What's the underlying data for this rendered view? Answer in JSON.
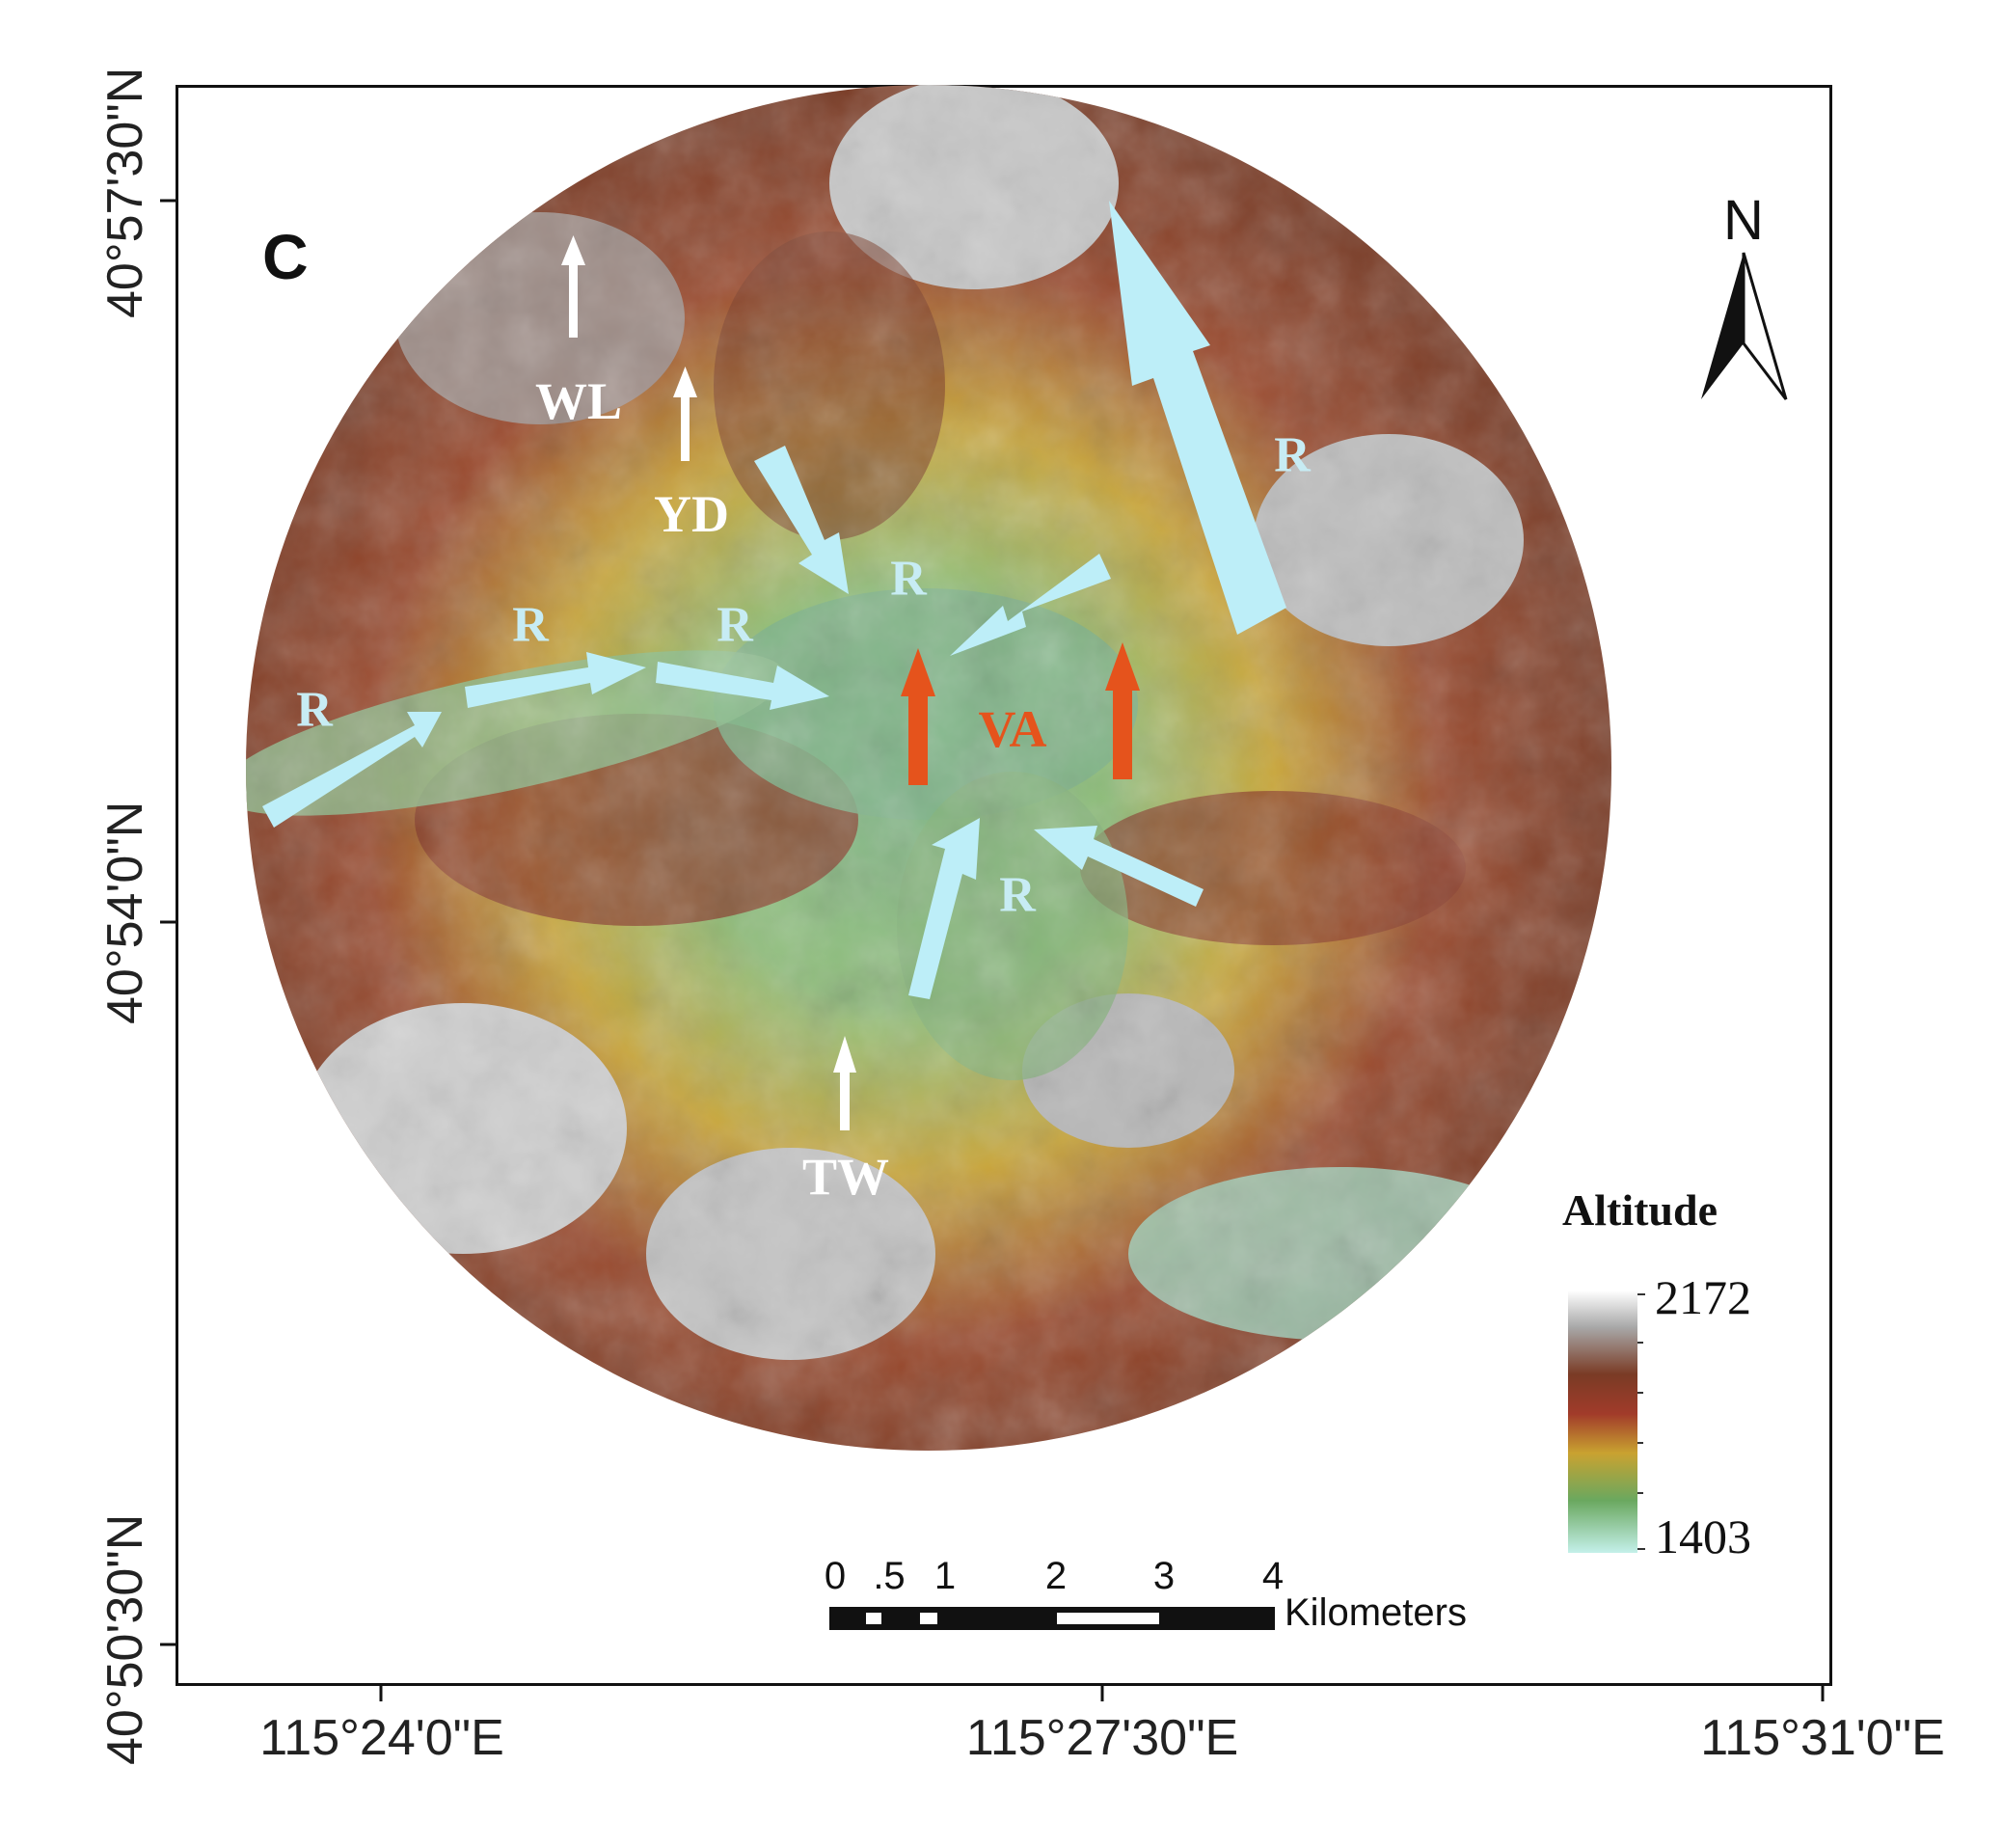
{
  "panel_letter": "C",
  "latitude_ticks": [
    "40°57'30\"N",
    "40°54'0\"N",
    "40°50'30\"N"
  ],
  "longitude_ticks": [
    "115°24'0\"E",
    "115°27'30\"E",
    "115°31'0\"E"
  ],
  "north_arrow": {
    "label": "N",
    "icon": "north-arrow-icon"
  },
  "legend": {
    "title": "Altitude",
    "max": "2172",
    "min": "1403",
    "colors": [
      "#ffffff",
      "#a8a8a8",
      "#7a3b25",
      "#a13b2a",
      "#c9a230",
      "#6aa85f",
      "#c4f0ea"
    ]
  },
  "scale_bar": {
    "ticks": [
      "0",
      ".5",
      "1",
      "2",
      "3",
      "4"
    ],
    "unit": "Kilometers"
  },
  "site_labels": [
    "WL",
    "YD",
    "TW"
  ],
  "river_label": "R",
  "valley_label": "VA",
  "colors": {
    "river_arrow": "#bdeef8",
    "site_arrow": "#ffffff",
    "valley_arrow": "#e5531c",
    "valley_text": "#e5531c",
    "river_text": "#c7ecf4",
    "site_text": "#ffffff"
  }
}
